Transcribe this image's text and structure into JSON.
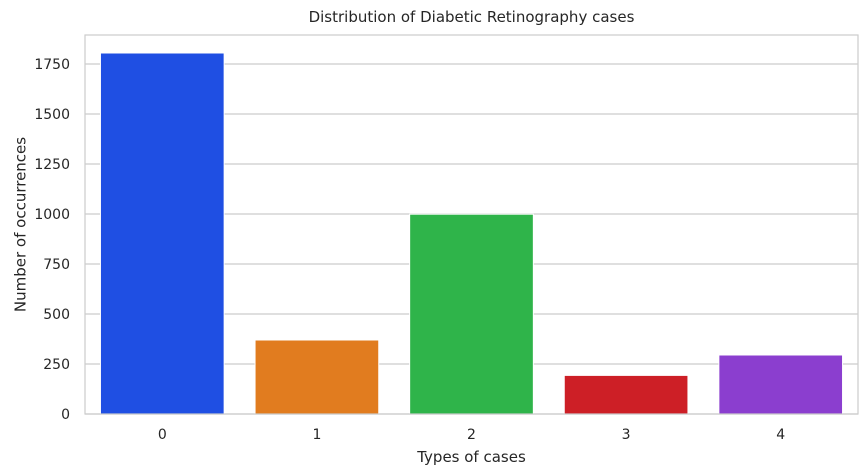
{
  "chart_data": {
    "type": "bar",
    "title": "Distribution of Diabetic Retinography cases",
    "xlabel": "Types of cases",
    "ylabel": "Number of occurrences",
    "categories": [
      "0",
      "1",
      "2",
      "3",
      "4"
    ],
    "values": [
      1805,
      370,
      999,
      193,
      295
    ],
    "colors": [
      "#1f4fe3",
      "#e17c1f",
      "#2fb44a",
      "#cd1f26",
      "#8b3ecf"
    ],
    "ylim": [
      0,
      1895
    ],
    "yticks": [
      0,
      250,
      500,
      750,
      1000,
      1250,
      1500,
      1750
    ],
    "grid": "horizontal",
    "legend": "none"
  }
}
